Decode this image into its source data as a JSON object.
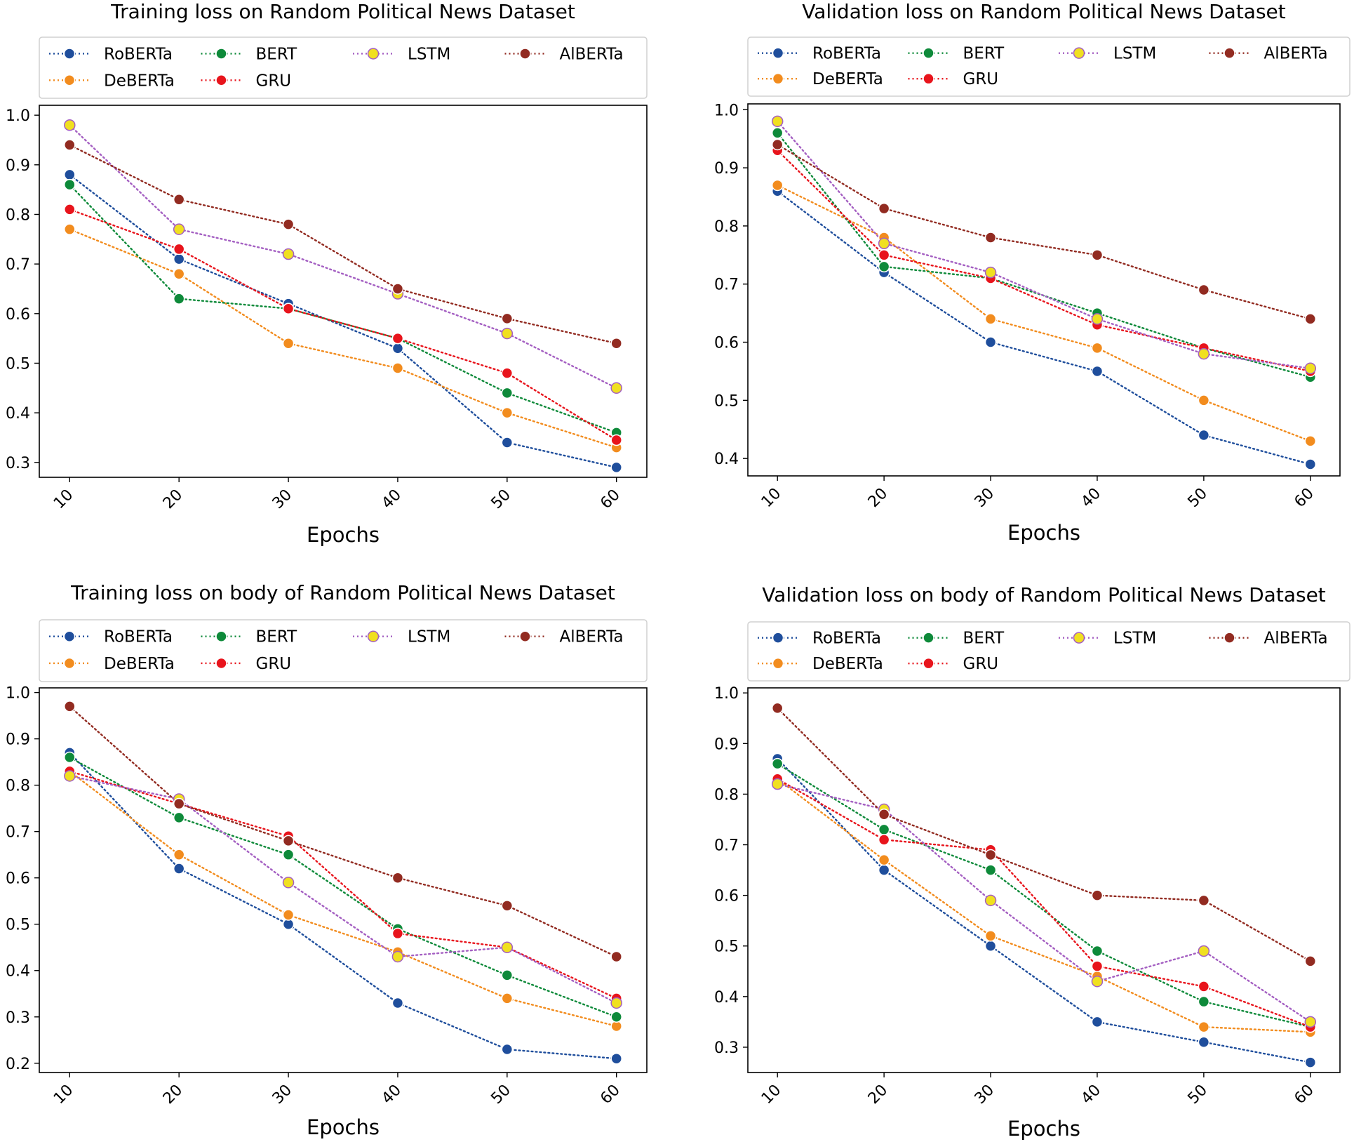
{
  "colors": {
    "RoBERTa": "#1f4e9c",
    "DeBERTa": "#f28c1e",
    "BERT": "#0e8a3a",
    "GRU": "#e8141c",
    "LSTM": "#f0e020",
    "LSTM_edge": "#a45fc2",
    "AlBERTa": "#922b21"
  },
  "chart_data": [
    {
      "type": "line",
      "title": "Training loss on Random Political News Dataset",
      "xlabel": "Epochs",
      "ylabel": "",
      "x": [
        10,
        20,
        30,
        40,
        50,
        60
      ],
      "ylim": [
        0.27,
        1.02
      ],
      "yticks": [
        0.3,
        0.4,
        0.5,
        0.6,
        0.7,
        0.8,
        0.9,
        1.0
      ],
      "ytick_labels": [
        "0.3",
        "0.4",
        "0.5",
        "0.6",
        "0.7",
        "0.8",
        "0.9",
        "1.0"
      ],
      "xtick_labels": [
        "10",
        "20",
        "30",
        "40",
        "50",
        "60"
      ],
      "series": [
        {
          "name": "RoBERTa",
          "values": [
            0.88,
            0.71,
            0.62,
            0.53,
            0.34,
            0.29
          ]
        },
        {
          "name": "BERT",
          "values": [
            0.86,
            0.63,
            0.61,
            0.55,
            0.44,
            0.36
          ]
        },
        {
          "name": "LSTM",
          "values": [
            0.98,
            0.77,
            0.72,
            0.64,
            0.56,
            0.45
          ]
        },
        {
          "name": "AlBERTa",
          "values": [
            0.94,
            0.83,
            0.78,
            0.65,
            0.59,
            0.54
          ]
        },
        {
          "name": "DeBERTa",
          "values": [
            0.77,
            0.68,
            0.54,
            0.49,
            0.4,
            0.33
          ]
        },
        {
          "name": "GRU",
          "values": [
            0.81,
            0.73,
            0.61,
            0.55,
            0.48,
            0.345
          ]
        }
      ]
    },
    {
      "type": "line",
      "title": "Validation loss on Random Political News Dataset",
      "xlabel": "Epochs",
      "ylabel": "",
      "x": [
        10,
        20,
        30,
        40,
        50,
        60
      ],
      "ylim": [
        0.37,
        1.01
      ],
      "yticks": [
        0.4,
        0.5,
        0.6,
        0.7,
        0.8,
        0.9,
        1.0
      ],
      "ytick_labels": [
        "0.4",
        "0.5",
        "0.6",
        "0.7",
        "0.8",
        "0.9",
        "1.0"
      ],
      "xtick_labels": [
        "10",
        "20",
        "30",
        "40",
        "50",
        "60"
      ],
      "series": [
        {
          "name": "RoBERTa",
          "values": [
            0.86,
            0.72,
            0.6,
            0.55,
            0.44,
            0.39
          ]
        },
        {
          "name": "BERT",
          "values": [
            0.96,
            0.73,
            0.71,
            0.65,
            0.59,
            0.54
          ]
        },
        {
          "name": "LSTM",
          "values": [
            0.98,
            0.77,
            0.72,
            0.64,
            0.58,
            0.555
          ]
        },
        {
          "name": "AlBERTa",
          "values": [
            0.94,
            0.83,
            0.78,
            0.75,
            0.69,
            0.64
          ]
        },
        {
          "name": "DeBERTa",
          "values": [
            0.87,
            0.78,
            0.64,
            0.59,
            0.5,
            0.43
          ]
        },
        {
          "name": "GRU",
          "values": [
            0.93,
            0.75,
            0.71,
            0.63,
            0.59,
            0.55
          ]
        }
      ]
    },
    {
      "type": "line",
      "title": "Training loss on body of Random Political News Dataset",
      "xlabel": "Epochs",
      "ylabel": "",
      "x": [
        10,
        20,
        30,
        40,
        50,
        60
      ],
      "ylim": [
        0.18,
        1.01
      ],
      "yticks": [
        0.2,
        0.3,
        0.4,
        0.5,
        0.6,
        0.7,
        0.8,
        0.9,
        1.0
      ],
      "ytick_labels": [
        "0.2",
        "0.3",
        "0.4",
        "0.5",
        "0.6",
        "0.7",
        "0.8",
        "0.9",
        "1.0"
      ],
      "xtick_labels": [
        "10",
        "20",
        "30",
        "40",
        "50",
        "60"
      ],
      "series": [
        {
          "name": "RoBERTa",
          "values": [
            0.87,
            0.62,
            0.5,
            0.33,
            0.23,
            0.21
          ]
        },
        {
          "name": "BERT",
          "values": [
            0.86,
            0.73,
            0.65,
            0.49,
            0.39,
            0.3
          ]
        },
        {
          "name": "LSTM",
          "values": [
            0.82,
            0.77,
            0.59,
            0.43,
            0.45,
            0.33
          ]
        },
        {
          "name": "AlBERTa",
          "values": [
            0.97,
            0.76,
            0.68,
            0.6,
            0.54,
            0.43
          ]
        },
        {
          "name": "DeBERTa",
          "values": [
            0.83,
            0.65,
            0.52,
            0.44,
            0.34,
            0.28
          ]
        },
        {
          "name": "GRU",
          "values": [
            0.83,
            0.76,
            0.69,
            0.48,
            0.45,
            0.34
          ]
        }
      ]
    },
    {
      "type": "line",
      "title": "Validation loss on body of Random Political News Dataset",
      "xlabel": "Epochs",
      "ylabel": "",
      "x": [
        10,
        20,
        30,
        40,
        50,
        60
      ],
      "ylim": [
        0.25,
        1.01
      ],
      "yticks": [
        0.3,
        0.4,
        0.5,
        0.6,
        0.7,
        0.8,
        0.9,
        1.0
      ],
      "ytick_labels": [
        "0.3",
        "0.4",
        "0.5",
        "0.6",
        "0.7",
        "0.8",
        "0.9",
        "1.0"
      ],
      "xtick_labels": [
        "10",
        "20",
        "30",
        "40",
        "50",
        "60"
      ],
      "series": [
        {
          "name": "RoBERTa",
          "values": [
            0.87,
            0.65,
            0.5,
            0.35,
            0.31,
            0.27
          ]
        },
        {
          "name": "BERT",
          "values": [
            0.86,
            0.73,
            0.65,
            0.49,
            0.39,
            0.34
          ]
        },
        {
          "name": "LSTM",
          "values": [
            0.82,
            0.77,
            0.59,
            0.43,
            0.49,
            0.35
          ]
        },
        {
          "name": "AlBERTa",
          "values": [
            0.97,
            0.76,
            0.68,
            0.6,
            0.59,
            0.47
          ]
        },
        {
          "name": "DeBERTa",
          "values": [
            0.83,
            0.67,
            0.52,
            0.44,
            0.34,
            0.33
          ]
        },
        {
          "name": "GRU",
          "values": [
            0.83,
            0.71,
            0.69,
            0.46,
            0.42,
            0.34
          ]
        }
      ]
    }
  ]
}
